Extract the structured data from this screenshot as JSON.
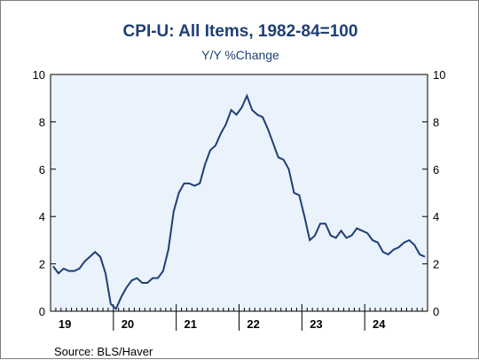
{
  "chart_data": {
    "type": "line",
    "title": "CPI-U: All Items, 1982-84=100",
    "subtitle": "Y/Y %Change",
    "source": "Source:  BLS/Haver",
    "ylim": [
      0,
      10
    ],
    "yticks": [
      0,
      2,
      4,
      6,
      8,
      10
    ],
    "yticks_labels": [
      "0",
      "2",
      "4",
      "6",
      "8",
      "10"
    ],
    "year_labels": [
      "19",
      "20",
      "21",
      "22",
      "23",
      "24"
    ],
    "x_start": "2019-01",
    "x_end": "2024-12",
    "grid": false,
    "line_color": "#1f3f74",
    "plot_bg": "#eaf2fb",
    "series": [
      {
        "values": [
          1.9,
          1.6,
          1.8,
          1.7,
          1.7,
          1.8,
          2.1,
          2.3,
          2.5,
          2.3,
          1.6,
          0.3,
          0.1,
          0.6,
          1.0,
          1.3,
          1.4,
          1.2,
          1.2,
          1.4,
          1.4,
          1.7,
          2.6,
          4.2,
          5.0,
          5.4,
          5.4,
          5.3,
          5.4,
          6.2,
          6.8,
          7.0,
          7.5,
          7.9,
          8.5,
          8.3,
          8.6,
          9.1,
          8.5,
          8.3,
          8.2,
          7.7,
          7.1,
          6.5,
          6.4,
          6.0,
          5.0,
          4.9,
          4.0,
          3.0,
          3.2,
          3.7,
          3.7,
          3.2,
          3.1,
          3.4,
          3.1,
          3.2,
          3.5,
          3.4,
          3.3,
          3.0,
          2.9,
          2.5,
          2.4,
          2.6,
          2.7,
          2.9,
          3.0,
          2.8,
          2.4,
          2.3
        ]
      }
    ]
  }
}
